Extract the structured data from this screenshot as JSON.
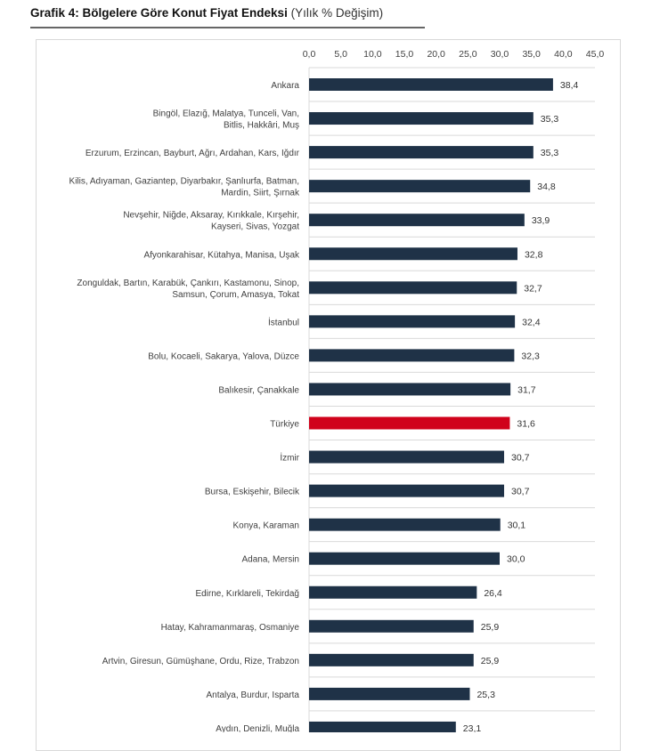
{
  "title": {
    "main": "Grafik 4: Bölgelere Göre Konut Fiyat Endeksi",
    "sub": "(Yılık % Değişim)"
  },
  "colors": {
    "bar": "#1f3247",
    "highlight": "#d0021b",
    "grid": "#d9d9d9"
  },
  "chart_data": {
    "type": "bar",
    "orientation": "horizontal",
    "xlim": [
      0,
      45
    ],
    "xticks": [
      "0,0",
      "5,0",
      "10,0",
      "15,0",
      "20,0",
      "25,0",
      "30,0",
      "35,0",
      "40,0",
      "45,0"
    ],
    "xtick_values": [
      0,
      5,
      10,
      15,
      20,
      25,
      30,
      35,
      40,
      45
    ],
    "axis_position": "top",
    "grid": "horizontal row separators",
    "highlight_category": "Türkiye",
    "categories": [
      [
        "Ankara"
      ],
      [
        "Bingöl, Elazığ, Malatya, Tunceli, Van,",
        "Bitlis, Hakkâri, Muş"
      ],
      [
        "Erzurum, Erzincan, Bayburt, Ağrı, Ardahan, Kars, Iğdır"
      ],
      [
        "Kilis, Adıyaman, Gaziantep, Diyarbakır, Şanlıurfa, Batman,",
        "Mardin, Siirt, Şırnak"
      ],
      [
        "Nevşehir, Niğde, Aksaray, Kırıkkale, Kırşehir,",
        "Kayseri, Sivas, Yozgat"
      ],
      [
        "Afyonkarahisar, Kütahya, Manisa, Uşak"
      ],
      [
        "Zonguldak, Bartın, Karabük, Çankırı, Kastamonu, Sinop,",
        "Samsun, Çorum, Amasya, Tokat"
      ],
      [
        "İstanbul"
      ],
      [
        "Bolu, Kocaeli, Sakarya, Yalova, Düzce"
      ],
      [
        "Balıkesir, Çanakkale"
      ],
      [
        "Türkiye"
      ],
      [
        "İzmir"
      ],
      [
        "Bursa, Eskişehir, Bilecik"
      ],
      [
        "Konya, Karaman"
      ],
      [
        "Adana, Mersin"
      ],
      [
        "Edirne, Kırklareli, Tekirdağ"
      ],
      [
        "Hatay, Kahramanmaraş, Osmaniye"
      ],
      [
        "Artvin, Giresun, Gümüşhane, Ordu, Rize, Trabzon"
      ],
      [
        "Antalya, Burdur, Isparta"
      ],
      [
        "Aydın, Denizli, Muğla"
      ]
    ],
    "values": [
      38.4,
      35.3,
      35.3,
      34.8,
      33.9,
      32.8,
      32.7,
      32.4,
      32.3,
      31.7,
      31.6,
      30.7,
      30.7,
      30.1,
      30.0,
      26.4,
      25.9,
      25.9,
      25.3,
      23.1
    ],
    "value_labels": [
      "38,4",
      "35,3",
      "35,3",
      "34,8",
      "33,9",
      "32,8",
      "32,7",
      "32,4",
      "32,3",
      "31,7",
      "31,6",
      "30,7",
      "30,7",
      "30,1",
      "30,0",
      "26,4",
      "25,9",
      "25,9",
      "25,3",
      "23,1"
    ]
  }
}
